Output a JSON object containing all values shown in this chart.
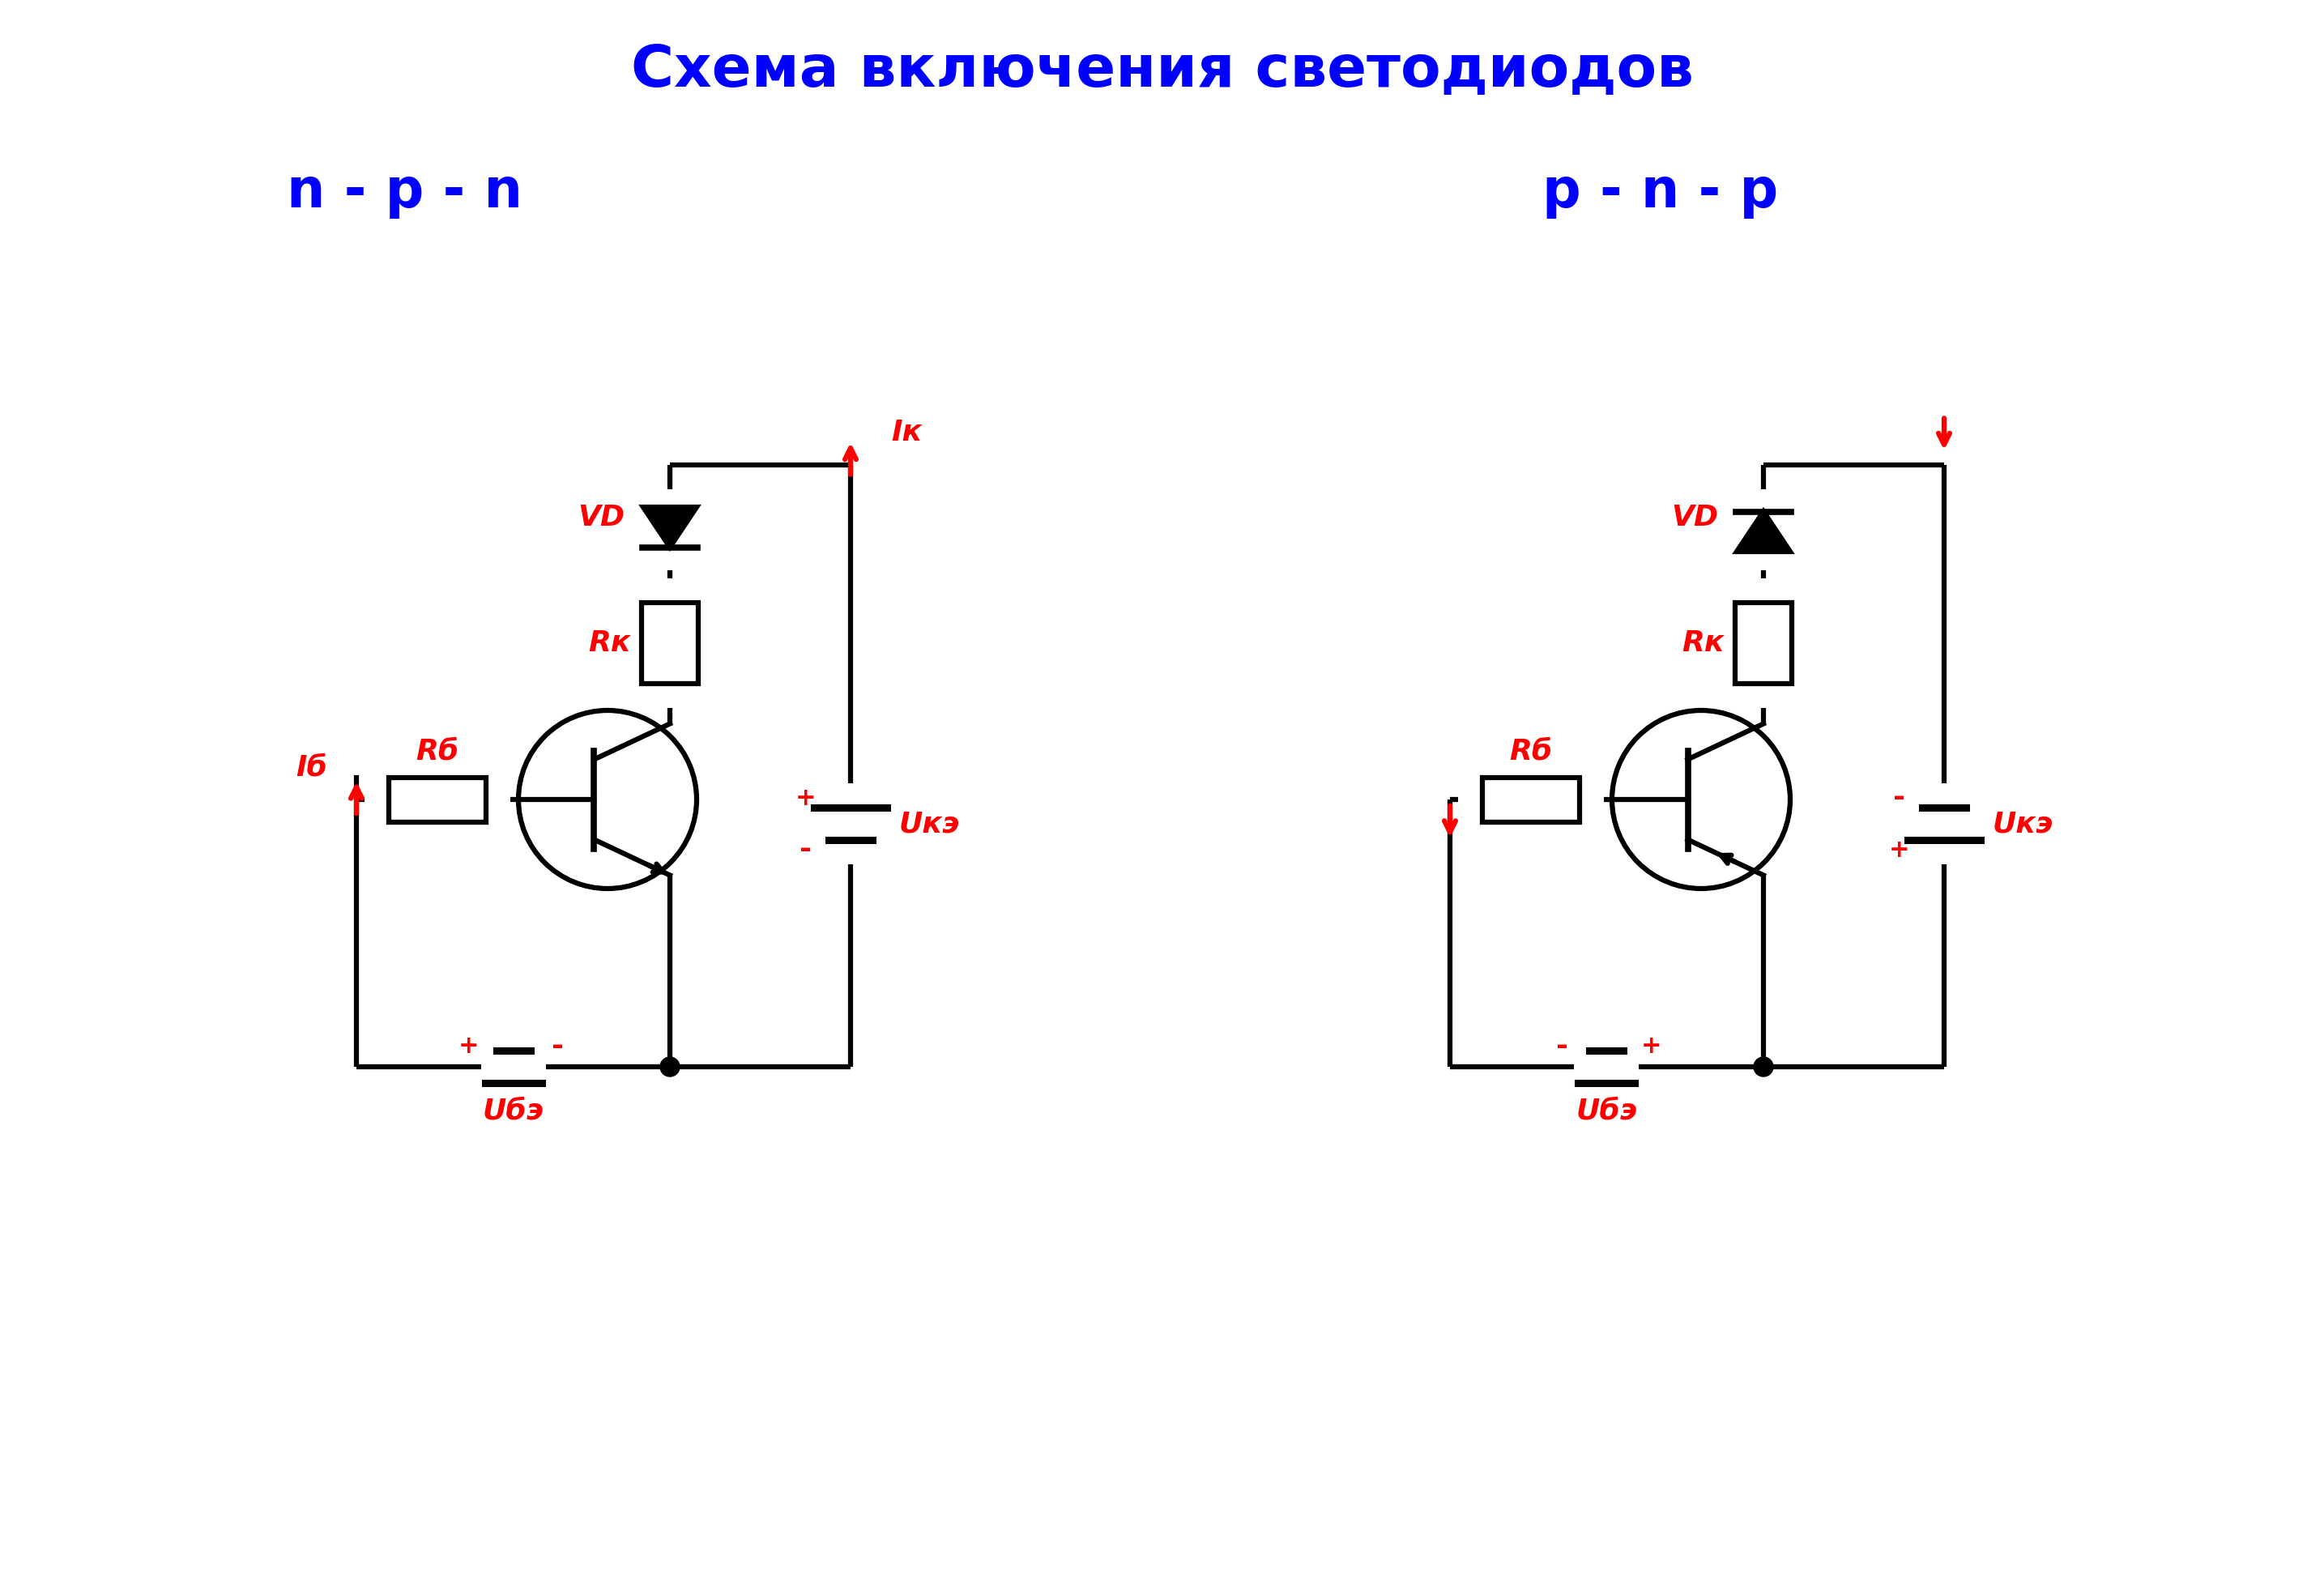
{
  "title": "Схема включения светодиодов",
  "title_color": "#0000FF",
  "title_fontsize": 52,
  "label_npn": "n - p - n",
  "label_pnp": "p - n - p",
  "label_color": "#0000FF",
  "label_fontsize": 48,
  "component_color": "#FF0000",
  "line_color": "#000000",
  "line_width": 4.5,
  "bg_color": "#FFFFFF"
}
